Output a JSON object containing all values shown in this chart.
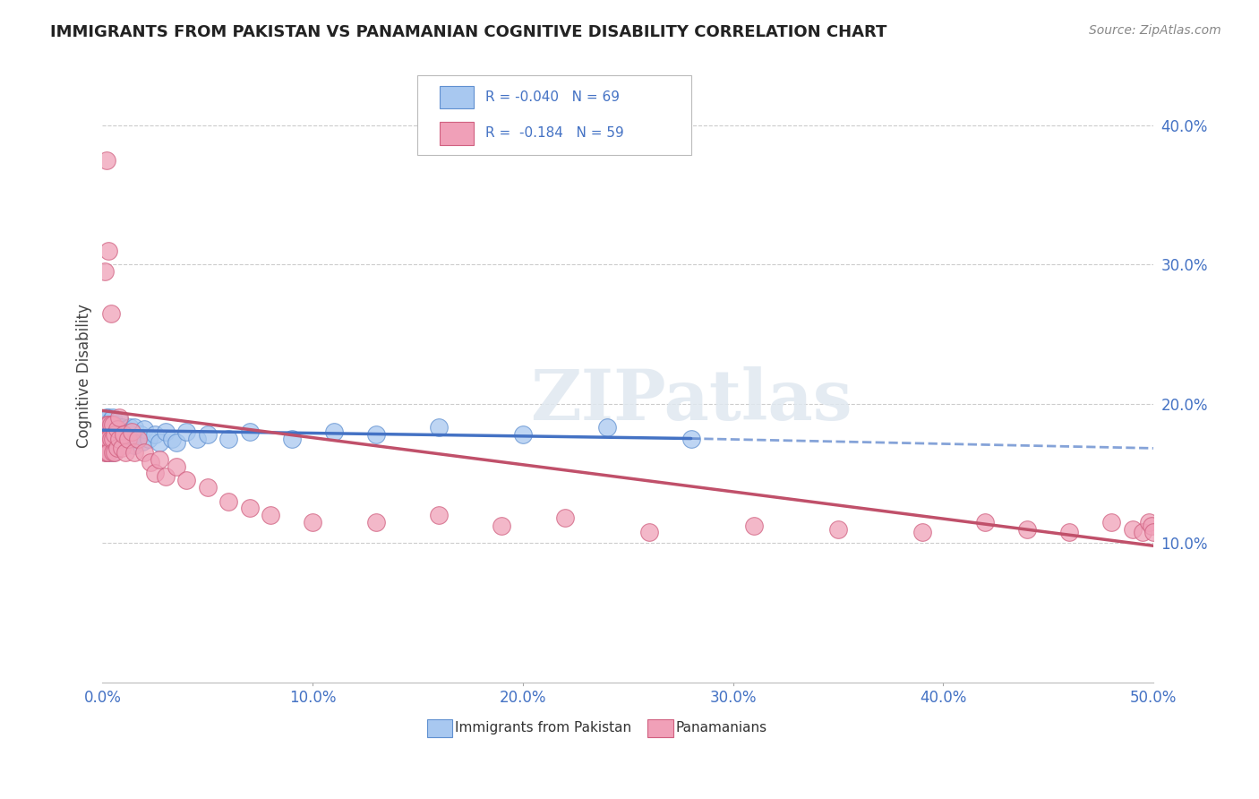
{
  "title": "IMMIGRANTS FROM PAKISTAN VS PANAMANIAN COGNITIVE DISABILITY CORRELATION CHART",
  "source": "Source: ZipAtlas.com",
  "ylabel": "Cognitive Disability",
  "r_blue": -0.04,
  "n_blue": 69,
  "r_pink": -0.184,
  "n_pink": 59,
  "xlim": [
    0.0,
    0.5
  ],
  "ylim": [
    0.0,
    0.44
  ],
  "xticks": [
    0.0,
    0.1,
    0.2,
    0.3,
    0.4,
    0.5
  ],
  "yticks": [
    0.1,
    0.2,
    0.3,
    0.4
  ],
  "ytick_labels": [
    "10.0%",
    "20.0%",
    "30.0%",
    "40.0%"
  ],
  "xtick_labels": [
    "0.0%",
    "10.0%",
    "20.0%",
    "30.0%",
    "40.0%",
    "50.0%"
  ],
  "blue_color": "#A8C8F0",
  "pink_color": "#F0A0B8",
  "blue_edge_color": "#6090D0",
  "pink_edge_color": "#D06080",
  "blue_line_color": "#4472C4",
  "pink_line_color": "#C0506A",
  "legend_label_blue": "Immigrants from Pakistan",
  "legend_label_pink": "Panamanians",
  "blue_x": [
    0.001,
    0.001,
    0.001,
    0.001,
    0.002,
    0.002,
    0.002,
    0.002,
    0.002,
    0.002,
    0.003,
    0.003,
    0.003,
    0.003,
    0.003,
    0.004,
    0.004,
    0.004,
    0.004,
    0.004,
    0.005,
    0.005,
    0.005,
    0.005,
    0.005,
    0.006,
    0.006,
    0.006,
    0.006,
    0.007,
    0.007,
    0.007,
    0.008,
    0.008,
    0.008,
    0.009,
    0.009,
    0.01,
    0.01,
    0.011,
    0.011,
    0.012,
    0.013,
    0.013,
    0.014,
    0.015,
    0.015,
    0.016,
    0.018,
    0.019,
    0.02,
    0.022,
    0.025,
    0.027,
    0.03,
    0.033,
    0.035,
    0.04,
    0.045,
    0.05,
    0.06,
    0.07,
    0.09,
    0.11,
    0.13,
    0.16,
    0.2,
    0.24,
    0.28
  ],
  "blue_y": [
    0.18,
    0.175,
    0.185,
    0.17,
    0.182,
    0.175,
    0.168,
    0.19,
    0.178,
    0.165,
    0.183,
    0.172,
    0.19,
    0.176,
    0.165,
    0.188,
    0.174,
    0.182,
    0.169,
    0.178,
    0.185,
    0.172,
    0.178,
    0.19,
    0.165,
    0.18,
    0.175,
    0.185,
    0.17,
    0.182,
    0.175,
    0.168,
    0.18,
    0.173,
    0.188,
    0.175,
    0.183,
    0.178,
    0.17,
    0.182,
    0.175,
    0.18,
    0.175,
    0.183,
    0.178,
    0.183,
    0.17,
    0.175,
    0.178,
    0.173,
    0.182,
    0.175,
    0.178,
    0.172,
    0.18,
    0.175,
    0.172,
    0.18,
    0.175,
    0.178,
    0.175,
    0.18,
    0.175,
    0.18,
    0.178,
    0.183,
    0.178,
    0.183,
    0.175
  ],
  "pink_x": [
    0.001,
    0.001,
    0.001,
    0.002,
    0.002,
    0.002,
    0.002,
    0.003,
    0.003,
    0.003,
    0.003,
    0.004,
    0.004,
    0.004,
    0.005,
    0.005,
    0.005,
    0.006,
    0.006,
    0.007,
    0.007,
    0.008,
    0.008,
    0.009,
    0.01,
    0.011,
    0.012,
    0.014,
    0.015,
    0.017,
    0.02,
    0.023,
    0.025,
    0.027,
    0.03,
    0.035,
    0.04,
    0.05,
    0.06,
    0.07,
    0.08,
    0.1,
    0.13,
    0.16,
    0.19,
    0.22,
    0.26,
    0.31,
    0.35,
    0.39,
    0.42,
    0.44,
    0.46,
    0.48,
    0.49,
    0.495,
    0.498,
    0.499,
    0.5
  ],
  "pink_y": [
    0.295,
    0.175,
    0.165,
    0.375,
    0.185,
    0.175,
    0.165,
    0.31,
    0.185,
    0.175,
    0.165,
    0.265,
    0.185,
    0.175,
    0.185,
    0.175,
    0.165,
    0.178,
    0.165,
    0.182,
    0.168,
    0.175,
    0.19,
    0.168,
    0.178,
    0.165,
    0.175,
    0.18,
    0.165,
    0.175,
    0.165,
    0.158,
    0.15,
    0.16,
    0.148,
    0.155,
    0.145,
    0.14,
    0.13,
    0.125,
    0.12,
    0.115,
    0.115,
    0.12,
    0.112,
    0.118,
    0.108,
    0.112,
    0.11,
    0.108,
    0.115,
    0.11,
    0.108,
    0.115,
    0.11,
    0.108,
    0.115,
    0.112,
    0.108
  ],
  "watermark_text": "ZIPatlas",
  "background_color": "#FFFFFF",
  "grid_color": "#CCCCCC",
  "blue_trend_start": 0.0,
  "blue_trend_solid_end": 0.28,
  "blue_trend_end": 0.5,
  "blue_trend_y0": 0.181,
  "blue_trend_y_solid_end": 0.175,
  "blue_trend_y_end": 0.168,
  "pink_trend_start": 0.0,
  "pink_trend_end": 0.5,
  "pink_trend_y0": 0.195,
  "pink_trend_y_end": 0.098
}
